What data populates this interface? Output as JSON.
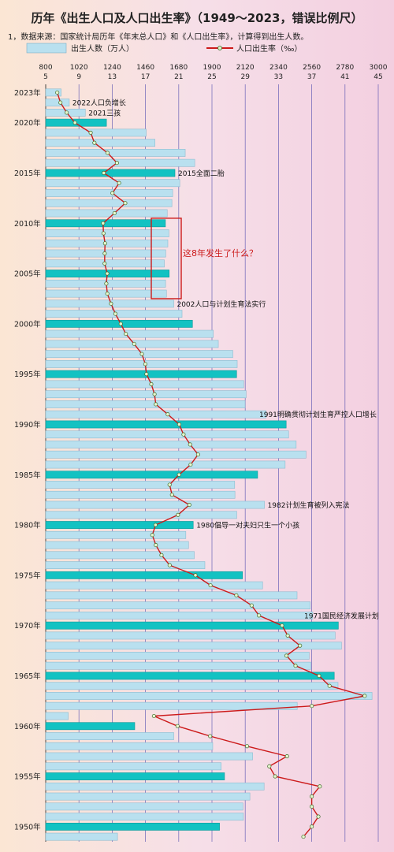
{
  "chart_data": {
    "type": "bar",
    "title": "历年《出生人口及人口出生率》（1949～2023，错误比例尺）",
    "subtitle": "1，数据来源：国家统计局历年《年末总人口》和《人口出生率》，计算得到出生人数。",
    "legend": {
      "bar_label": "出生人数（万人）",
      "line_label": "人口出生率（‰）"
    },
    "axis_births_ticks": [
      "800",
      "1020",
      "1240",
      "1460",
      "1680",
      "1900",
      "2120",
      "2340",
      "2560",
      "2780",
      "3000"
    ],
    "axis_rate_ticks": [
      "5",
      "9",
      "13",
      "17",
      "21",
      "25",
      "29",
      "33",
      "37",
      "41",
      "45"
    ],
    "births_range": [
      800,
      3000
    ],
    "rate_range": [
      5,
      45
    ],
    "year_labels": [
      "2023年",
      "2020年",
      "2015年",
      "2010年",
      "2005年",
      "2000年",
      "1995年",
      "1990年",
      "1985年",
      "1980年",
      "1975年",
      "1970年",
      "1965年",
      "1960年",
      "1955年",
      "1950年"
    ],
    "years": [
      2023,
      2022,
      2021,
      2020,
      2019,
      2018,
      2017,
      2016,
      2015,
      2014,
      2013,
      2012,
      2011,
      2010,
      2009,
      2008,
      2007,
      2006,
      2005,
      2004,
      2003,
      2002,
      2001,
      2000,
      1999,
      1998,
      1997,
      1996,
      1995,
      1994,
      1993,
      1992,
      1991,
      1990,
      1989,
      1988,
      1987,
      1986,
      1985,
      1984,
      1983,
      1982,
      1981,
      1980,
      1979,
      1978,
      1977,
      1976,
      1975,
      1974,
      1973,
      1972,
      1971,
      1970,
      1969,
      1968,
      1967,
      1966,
      1965,
      1964,
      1963,
      1962,
      1961,
      1960,
      1959,
      1958,
      1957,
      1956,
      1955,
      1954,
      1953,
      1952,
      1951,
      1950,
      1949
    ],
    "births": [
      902,
      956,
      1062,
      1202,
      1465,
      1523,
      1723,
      1786,
      1655,
      1687,
      1640,
      1635,
      1604,
      1592,
      1615,
      1608,
      1594,
      1585,
      1617,
      1593,
      1599,
      1647,
      1702,
      1771,
      1909,
      1942,
      2038,
      2067,
      2063,
      2110,
      2126,
      2119,
      2258,
      2391,
      2407,
      2457,
      2522,
      2384,
      2202,
      2050,
      2052,
      2247,
      2064,
      1776,
      1727,
      1745,
      1783,
      1853,
      2102,
      2235,
      2463,
      2550,
      2567,
      2736,
      2715,
      2757,
      2543,
      2554,
      2709,
      2734,
      2959,
      2464,
      949,
      1389,
      1647,
      1905,
      2169,
      1961,
      1983,
      2245,
      2151,
      2105,
      2108,
      1950,
      1275
    ],
    "birth_rate": [
      6.39,
      6.77,
      7.52,
      8.52,
      10.41,
      10.86,
      12.43,
      13.57,
      11.99,
      13.83,
      13.03,
      14.57,
      13.27,
      11.9,
      11.95,
      12.14,
      12.1,
      12.09,
      12.4,
      12.29,
      12.41,
      12.86,
      13.38,
      14.03,
      14.64,
      15.64,
      16.57,
      16.98,
      17.12,
      17.7,
      18.09,
      18.24,
      19.68,
      21.06,
      21.58,
      22.37,
      23.33,
      22.43,
      21.04,
      19.9,
      20.19,
      22.28,
      20.91,
      18.21,
      17.82,
      18.25,
      18.93,
      19.91,
      23.01,
      24.82,
      27.93,
      29.77,
      30.65,
      33.43,
      34.11,
      35.59,
      33.96,
      35.05,
      37.88,
      39.14,
      43.37,
      37.01,
      18.02,
      20.86,
      24.78,
      29.22,
      34.03,
      31.9,
      32.6,
      37.97,
      37.0,
      37.0,
      37.8,
      37.0,
      36.0
    ],
    "highlight_years": [
      2020,
      2015,
      2010,
      2005,
      2000,
      1995,
      1990,
      1985,
      1980,
      1975,
      1970,
      1965,
      1960,
      1955,
      1950
    ],
    "highlight_color": "#13c2c2",
    "bar_color": "#b9e0ef",
    "line_color": "#cc1a1a",
    "annotations": [
      {
        "year": 2022,
        "text": "2022人口负增长"
      },
      {
        "year": 2021,
        "text": "2021三孩"
      },
      {
        "year": 2015,
        "text": "2015全面二胎"
      },
      {
        "year": 2002,
        "text": "2002人口与计划生育法实行"
      },
      {
        "year": 1991,
        "text": "1991明确贯彻计划生育严控人口增长"
      },
      {
        "year": 1982,
        "text": "1982计划生育被列入宪法"
      },
      {
        "year": 1980,
        "text": "1980倡导一对夫妇只生一个小孩"
      },
      {
        "year": 1971,
        "text": "1971国民经济发展计划"
      }
    ],
    "callout": {
      "text": "这8年发生了什么？",
      "from_year": 2010,
      "to_year": 2003,
      "color": "#cc1a1a"
    }
  }
}
